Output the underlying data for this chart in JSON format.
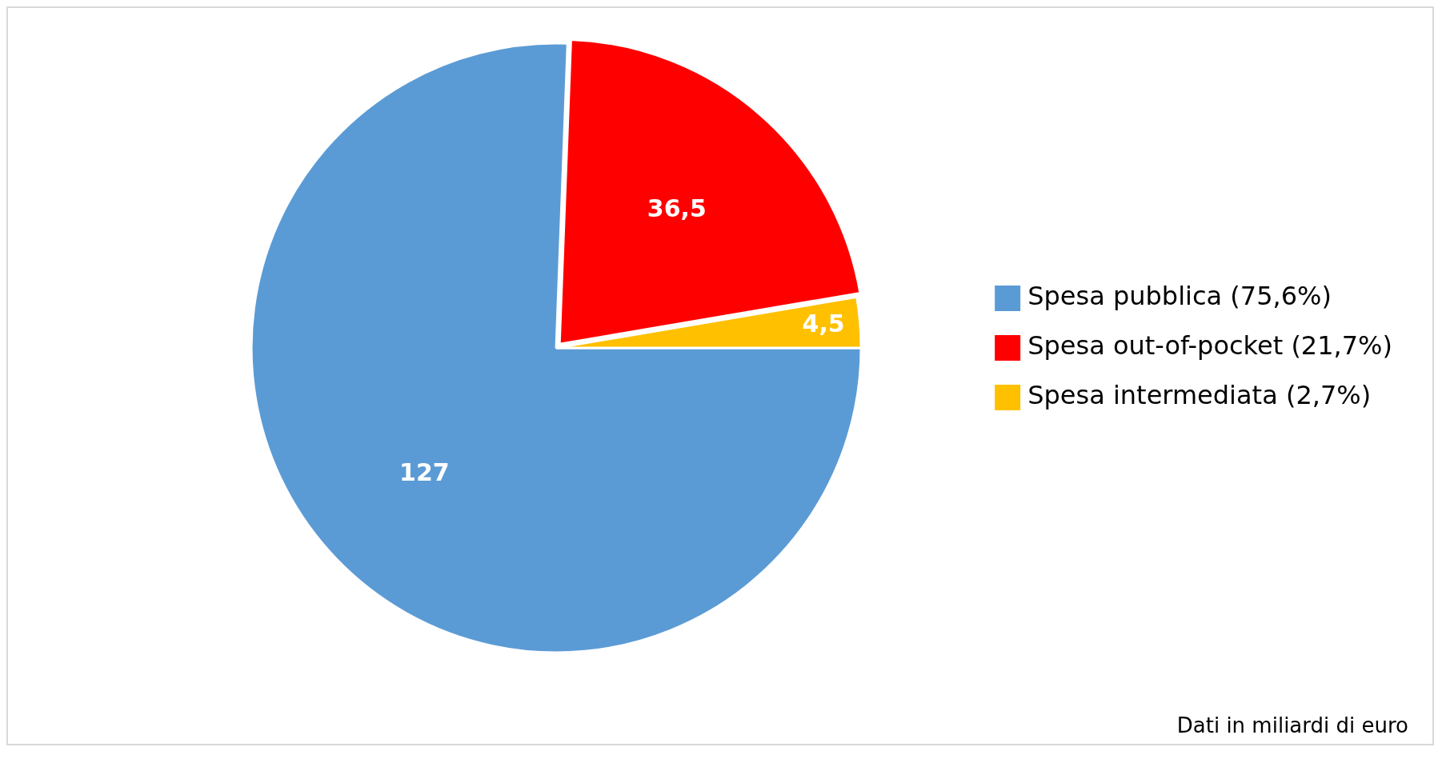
{
  "chart_data": {
    "type": "pie",
    "categories": [
      "Spesa pubblica (75,6%)",
      "Spesa out-of-pocket (21,7%)",
      "Spesa intermediata (2,7%)"
    ],
    "values": [
      127,
      36.5,
      4.5
    ],
    "colors": [
      "#5b9bd5",
      "#ff0000",
      "#ffc000"
    ],
    "value_labels": [
      "127",
      "36,5",
      "4,5"
    ],
    "legend": "right",
    "annotations": [
      "Dati in miliardi di euro"
    ]
  }
}
